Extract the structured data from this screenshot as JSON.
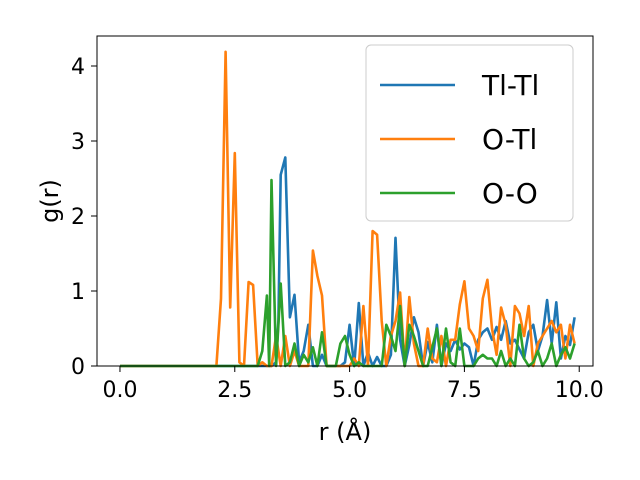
{
  "chart_data": {
    "type": "line",
    "title": "",
    "xlabel": "r (Å)",
    "ylabel": "g(r)",
    "xlim": [
      -0.5,
      10.3
    ],
    "ylim": [
      0,
      4.4
    ],
    "xticks": [
      0.0,
      2.5,
      5.0,
      7.5,
      10.0
    ],
    "xtick_labels": [
      "0.0",
      "2.5",
      "5.0",
      "7.5",
      "10.0"
    ],
    "yticks": [
      0,
      1,
      2,
      3,
      4
    ],
    "ytick_labels": [
      "0",
      "1",
      "2",
      "3",
      "4"
    ],
    "grid": false,
    "legend_position": "upper-right",
    "series": [
      {
        "name": "Tl-Tl",
        "color": "#1f77b4",
        "x": [
          0.0,
          2.2,
          3.3,
          3.4,
          3.45,
          3.5,
          3.6,
          3.7,
          3.8,
          3.9,
          4.0,
          4.1,
          4.2,
          4.3,
          4.4,
          4.5,
          4.6,
          4.7,
          4.8,
          4.9,
          5.0,
          5.1,
          5.2,
          5.3,
          5.4,
          5.5,
          5.6,
          5.7,
          5.8,
          5.9,
          6.0,
          6.1,
          6.2,
          6.3,
          6.4,
          6.5,
          6.6,
          6.7,
          6.8,
          6.9,
          7.0,
          7.1,
          7.2,
          7.3,
          7.4,
          7.5,
          7.6,
          7.7,
          7.8,
          7.9,
          8.0,
          8.1,
          8.2,
          8.3,
          8.4,
          8.5,
          8.6,
          8.7,
          8.8,
          8.9,
          9.0,
          9.1,
          9.2,
          9.3,
          9.4,
          9.5,
          9.6,
          9.7,
          9.8,
          9.9
        ],
        "y": [
          0,
          0,
          0,
          0.05,
          0.6,
          2.55,
          2.78,
          0.65,
          0.95,
          0.05,
          0.2,
          0.55,
          0.0,
          0.0,
          0.15,
          0.0,
          0.0,
          0.0,
          0.0,
          0.05,
          0.55,
          0.0,
          0.84,
          0.0,
          0.18,
          0.0,
          0.12,
          0.0,
          0.0,
          0.15,
          1.71,
          0.35,
          0.0,
          0.28,
          0.65,
          0.45,
          0.0,
          0.32,
          0.05,
          0.55,
          0.0,
          0.3,
          0.2,
          0.35,
          0.22,
          0.3,
          0.25,
          0.0,
          0.35,
          0.45,
          0.5,
          0.35,
          0.52,
          0.35,
          0.6,
          0.3,
          0.35,
          0.22,
          0.1,
          0.45,
          0.55,
          0.2,
          0.4,
          0.88,
          0.3,
          0.85,
          0.1,
          0.4,
          0.28,
          0.65
        ]
      },
      {
        "name": "O-Tl",
        "color": "#ff7f0e",
        "x": [
          0.0,
          2.1,
          2.2,
          2.3,
          2.4,
          2.5,
          2.6,
          2.7,
          2.8,
          2.9,
          3.0,
          3.1,
          3.2,
          3.3,
          3.4,
          3.5,
          3.6,
          3.7,
          3.8,
          3.9,
          4.0,
          4.1,
          4.2,
          4.3,
          4.4,
          4.5,
          4.6,
          4.7,
          4.8,
          4.9,
          5.0,
          5.1,
          5.2,
          5.3,
          5.4,
          5.5,
          5.6,
          5.7,
          5.8,
          5.9,
          6.0,
          6.1,
          6.2,
          6.3,
          6.4,
          6.5,
          6.6,
          6.7,
          6.8,
          6.9,
          7.0,
          7.1,
          7.2,
          7.3,
          7.4,
          7.5,
          7.6,
          7.7,
          7.8,
          7.9,
          8.0,
          8.1,
          8.2,
          8.3,
          8.4,
          8.5,
          8.6,
          8.7,
          8.8,
          8.9,
          9.0,
          9.1,
          9.2,
          9.3,
          9.4,
          9.5,
          9.6,
          9.7,
          9.8,
          9.9
        ],
        "y": [
          0,
          0,
          0.9,
          4.19,
          0.78,
          2.84,
          0.05,
          0.0,
          1.12,
          1.08,
          0.0,
          0.05,
          0.0,
          0.0,
          0.4,
          0.0,
          0.4,
          0.0,
          0.2,
          0.0,
          0.0,
          0.0,
          1.54,
          1.2,
          0.94,
          0.0,
          0.0,
          0.0,
          0.0,
          0.0,
          0.0,
          0.1,
          0.0,
          0.8,
          0.0,
          1.8,
          1.75,
          0.6,
          0.0,
          0.4,
          0.6,
          0.98,
          0.0,
          0.92,
          0.3,
          0.0,
          0.0,
          0.5,
          0.1,
          0.05,
          0.4,
          0.0,
          0.35,
          0.35,
          0.82,
          1.13,
          0.5,
          0.4,
          0.2,
          0.9,
          1.15,
          0.5,
          0.15,
          0.78,
          0.55,
          0.0,
          0.8,
          0.7,
          0.4,
          0.8,
          0.0,
          0.3,
          0.4,
          0.5,
          0.6,
          0.45,
          0.55,
          0.1,
          0.55,
          0.3
        ]
      },
      {
        "name": "O-O",
        "color": "#2ca02c",
        "x": [
          0.0,
          2.9,
          3.0,
          3.1,
          3.2,
          3.25,
          3.3,
          3.4,
          3.5,
          3.6,
          3.7,
          3.8,
          3.9,
          4.0,
          4.1,
          4.2,
          4.3,
          4.4,
          4.5,
          4.6,
          4.7,
          4.8,
          4.9,
          5.0,
          5.1,
          5.2,
          5.3,
          5.4,
          5.5,
          5.6,
          5.7,
          5.8,
          5.9,
          6.0,
          6.1,
          6.2,
          6.3,
          6.4,
          6.5,
          6.6,
          6.7,
          6.8,
          6.9,
          7.0,
          7.1,
          7.2,
          7.3,
          7.4,
          7.5,
          7.6,
          7.7,
          7.8,
          7.9,
          8.0,
          8.1,
          8.2,
          8.3,
          8.4,
          8.5,
          8.6,
          8.7,
          8.8,
          8.9,
          9.0,
          9.1,
          9.2,
          9.3,
          9.4,
          9.5,
          9.6,
          9.7,
          9.8,
          9.9
        ],
        "y": [
          0,
          0,
          0.0,
          0.2,
          0.94,
          0.0,
          2.48,
          0.0,
          1.1,
          0.0,
          0.05,
          0.3,
          0.0,
          0.15,
          0.05,
          0.25,
          0.0,
          0.45,
          0.0,
          0.0,
          0.0,
          0.3,
          0.4,
          0.15,
          0.0,
          0.05,
          0.0,
          0.0,
          0.0,
          0.0,
          0.0,
          0.55,
          0.4,
          0.2,
          0.8,
          0.0,
          0.55,
          0.4,
          0.2,
          0.0,
          0.0,
          0.25,
          0.5,
          0.0,
          0.5,
          0.05,
          0.0,
          0.5,
          0.0,
          0.0,
          0.0,
          0.1,
          0.15,
          0.1,
          0.1,
          0.0,
          0.2,
          0.0,
          0.1,
          0.0,
          0.55,
          0.1,
          0.0,
          0.05,
          0.2,
          0.0,
          0.1,
          0.3,
          0.0,
          0.15,
          0.25,
          0.1,
          0.3
        ]
      }
    ]
  }
}
